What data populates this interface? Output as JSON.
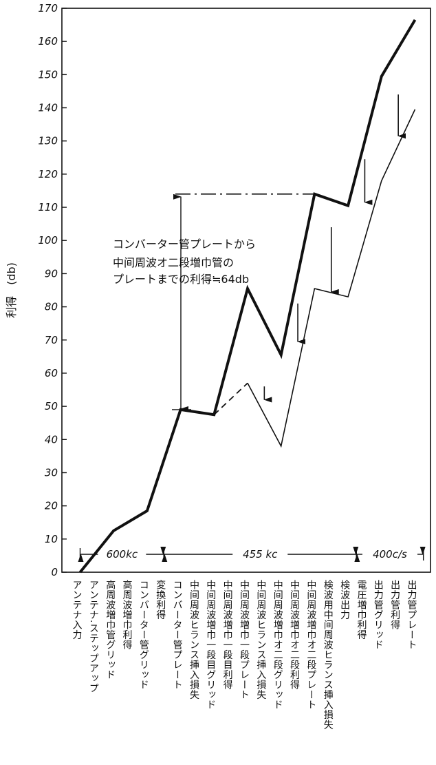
{
  "chart_data": {
    "type": "line",
    "ylabel": "利得　(db)",
    "ylim": [
      0,
      170
    ],
    "yticks": [
      0,
      10,
      20,
      30,
      40,
      50,
      60,
      70,
      80,
      90,
      100,
      110,
      120,
      130,
      140,
      150,
      160,
      170
    ],
    "categories": [
      "アンテナ入力",
      "アンテナ.ステップアップ",
      "高周波増巾管グリッド",
      "高周波増巾利得",
      "コンバーター管グリッド",
      "変換利得",
      "コンバーター管プレート",
      "中间周波ヒランス挿入損失",
      "中间周波増巾一段目グリッド",
      "中间周波増巾一段目利得",
      "中间周波増巾一段プレート",
      "中间周波ヒランス挿入損失",
      "中间周波増巾オ二段グリッド",
      "中间周波増巾オ二段利得",
      "中间周波増巾オ二段プレート",
      "検波用中间周波ヒランス挿入損失",
      "検波出力",
      "電圧増巾利得",
      "出力管グリッド",
      "出力管利得",
      "出力管プレート"
    ],
    "series": [
      {
        "style": "thick",
        "x": [
          0,
          2,
          4,
          6,
          8,
          10,
          12,
          14,
          16,
          18,
          20
        ],
        "values": [
          0,
          12.5,
          18.5,
          49,
          47.5,
          85.5,
          65.5,
          114,
          110.5,
          149.5,
          166.5
        ]
      },
      {
        "style": "dashed",
        "x": [
          8,
          10
        ],
        "values": [
          47.5,
          57
        ]
      },
      {
        "style": "thin",
        "x": [
          10,
          12,
          14,
          16,
          18,
          20
        ],
        "values": [
          57,
          38,
          85.5,
          83,
          118,
          139.5
        ]
      }
    ],
    "arrows": [
      {
        "x": 11,
        "from": 52,
        "to": 56
      },
      {
        "x": 13,
        "from": 69.5,
        "to": 81
      },
      {
        "x": 15,
        "from": 84.5,
        "to": 104
      },
      {
        "x": 17,
        "from": 111.5,
        "to": 124.5
      },
      {
        "x": 19,
        "from": 131.5,
        "to": 144
      }
    ],
    "bands": [
      {
        "label": "600kc",
        "from": 0,
        "to": 5
      },
      {
        "label": "455 kc",
        "from": 5,
        "to": 16.5
      },
      {
        "label": "400c/s",
        "from": 16.5,
        "to": 20.5
      }
    ],
    "annotation": {
      "lines": [
        "コンバーター管プレートから",
        "中间周波オ二段増巾管の",
        "プレートまでの利得≒64db"
      ],
      "range": [
        49,
        114
      ]
    }
  }
}
